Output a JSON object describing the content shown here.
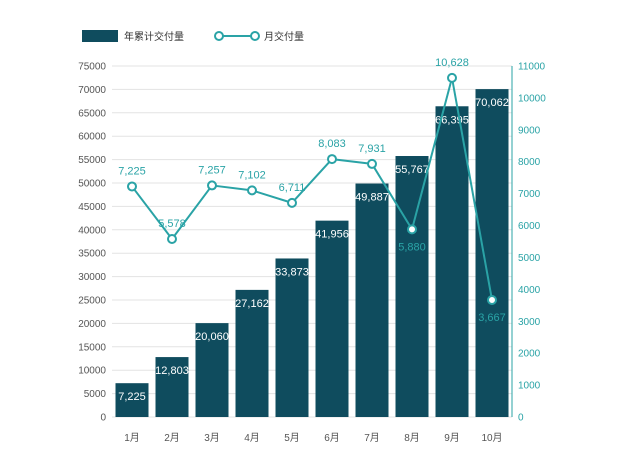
{
  "chart_data": {
    "type": "bar+line",
    "categories": [
      "1月",
      "2月",
      "3月",
      "4月",
      "5月",
      "6月",
      "7月",
      "8月",
      "9月",
      "10月"
    ],
    "series": [
      {
        "name": "年累计交付量",
        "type": "bar",
        "axis": "left",
        "values": [
          7225,
          12803,
          20060,
          27162,
          33873,
          41956,
          49887,
          55767,
          66395,
          70062
        ],
        "labels": [
          "7,225",
          "12,803",
          "20,060",
          "27,162",
          "33,873",
          "41,956",
          "49,887",
          "55,767",
          "66,395",
          "70,062"
        ]
      },
      {
        "name": "月交付量",
        "type": "line",
        "axis": "right",
        "values": [
          7225,
          5578,
          7257,
          7102,
          6711,
          8083,
          7931,
          5880,
          10628,
          3667
        ],
        "labels": [
          "7,225",
          "5,578",
          "7,257",
          "7,102",
          "6,711",
          "8,083",
          "7,931",
          "5,880",
          "10,628",
          "3,667"
        ]
      }
    ],
    "left_axis": {
      "ylim": [
        0,
        75000
      ],
      "ticks": [
        "0",
        "5000",
        "10000",
        "15000",
        "20000",
        "25000",
        "30000",
        "35000",
        "40000",
        "45000",
        "50000",
        "55000",
        "60000",
        "65000",
        "70000",
        "75000"
      ]
    },
    "right_axis": {
      "ylim": [
        0,
        11000
      ],
      "ticks": [
        "0",
        "1000",
        "2000",
        "3000",
        "4000",
        "5000",
        "6000",
        "7000",
        "8000",
        "9000",
        "10000",
        "11000"
      ]
    },
    "grid": true,
    "legend_position": "top-left",
    "colors": {
      "bar": "#0f4c5e",
      "line": "#2aa3a6",
      "marker_fill": "#ffffff",
      "grid": "#e3e3e3",
      "axis_text": "#555555",
      "right_axis_text": "#2aa3a6"
    }
  }
}
